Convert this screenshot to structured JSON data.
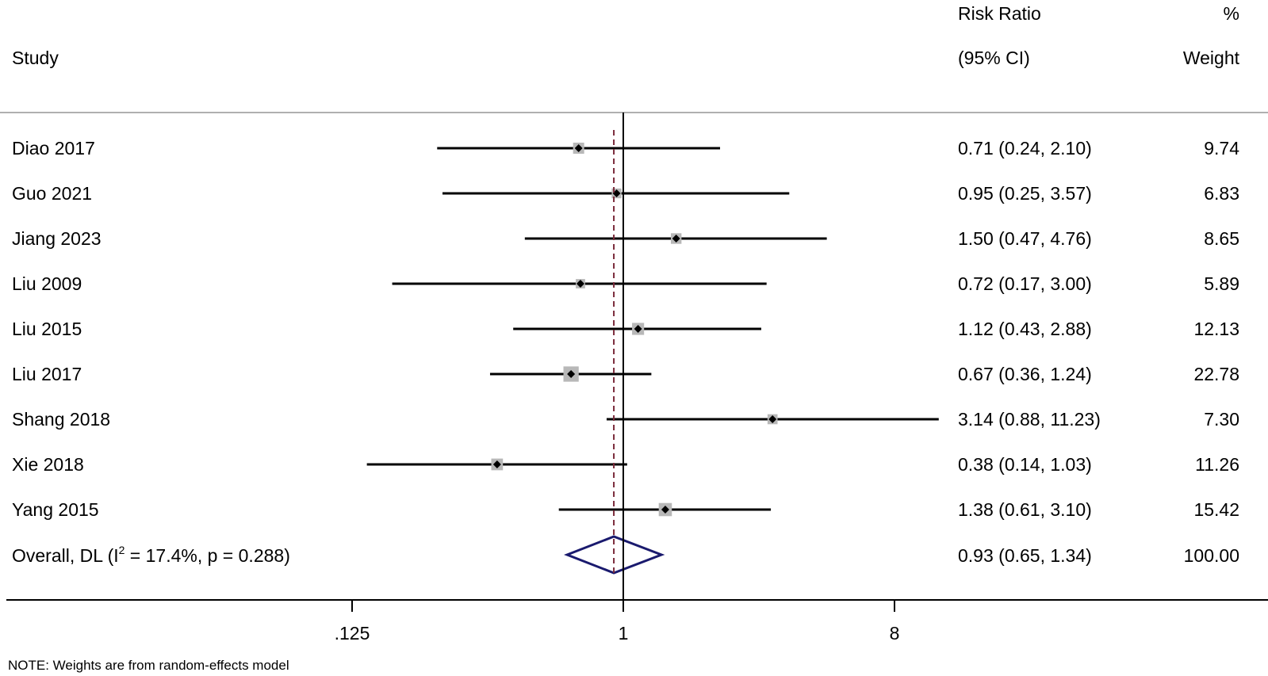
{
  "header": {
    "study": "Study",
    "effect_line1": "Risk Ratio",
    "effect_line2": "(95% CI)",
    "weight_line1": "%",
    "weight_line2": "Weight"
  },
  "overall": {
    "label_prefix": "Overall, DL (I",
    "label_sup": "2",
    "label_suffix": " = 17.4%, p = 0.288)",
    "rr": 0.93,
    "lo": 0.65,
    "hi": 1.34,
    "ci_text": "0.93 (0.65, 1.34)",
    "weight_text": "100.00"
  },
  "footnote": "NOTE: Weights are from random-effects model",
  "colors": {
    "diamond": "#1a1a6e",
    "box": "#b8b8b8",
    "dashed_line": "#7a2a3a"
  },
  "chart_data": {
    "type": "forest",
    "scale": "log",
    "x_ticks": [
      0.125,
      1,
      8
    ],
    "x_tick_labels": [
      ".125",
      "1",
      "8"
    ],
    "xlim": [
      0.0175,
      70
    ],
    "reference_line": 1,
    "overall_line": 0.93,
    "studies": [
      {
        "name": "Diao 2017",
        "rr": 0.71,
        "lo": 0.24,
        "hi": 2.1,
        "weight": 9.74,
        "ci_text": "0.71 (0.24, 2.10)",
        "weight_text": "9.74"
      },
      {
        "name": "Guo 2021",
        "rr": 0.95,
        "lo": 0.25,
        "hi": 3.57,
        "weight": 6.83,
        "ci_text": "0.95 (0.25, 3.57)",
        "weight_text": "6.83"
      },
      {
        "name": "Jiang 2023",
        "rr": 1.5,
        "lo": 0.47,
        "hi": 4.76,
        "weight": 8.65,
        "ci_text": "1.50 (0.47, 4.76)",
        "weight_text": "8.65"
      },
      {
        "name": "Liu 2009",
        "rr": 0.72,
        "lo": 0.17,
        "hi": 3.0,
        "weight": 5.89,
        "ci_text": "0.72 (0.17, 3.00)",
        "weight_text": "5.89"
      },
      {
        "name": "Liu 2015",
        "rr": 1.12,
        "lo": 0.43,
        "hi": 2.88,
        "weight": 12.13,
        "ci_text": "1.12 (0.43, 2.88)",
        "weight_text": "12.13"
      },
      {
        "name": "Liu 2017",
        "rr": 0.67,
        "lo": 0.36,
        "hi": 1.24,
        "weight": 22.78,
        "ci_text": "0.67 (0.36, 1.24)",
        "weight_text": "22.78"
      },
      {
        "name": "Shang 2018",
        "rr": 3.14,
        "lo": 0.88,
        "hi": 11.23,
        "weight": 7.3,
        "ci_text": "3.14 (0.88, 11.23)",
        "weight_text": "7.30"
      },
      {
        "name": "Xie 2018",
        "rr": 0.38,
        "lo": 0.14,
        "hi": 1.03,
        "weight": 11.26,
        "ci_text": "0.38 (0.14, 1.03)",
        "weight_text": "11.26"
      },
      {
        "name": "Yang 2015",
        "rr": 1.38,
        "lo": 0.61,
        "hi": 3.1,
        "weight": 15.42,
        "ci_text": "1.38 (0.61, 3.10)",
        "weight_text": "15.42"
      }
    ]
  }
}
